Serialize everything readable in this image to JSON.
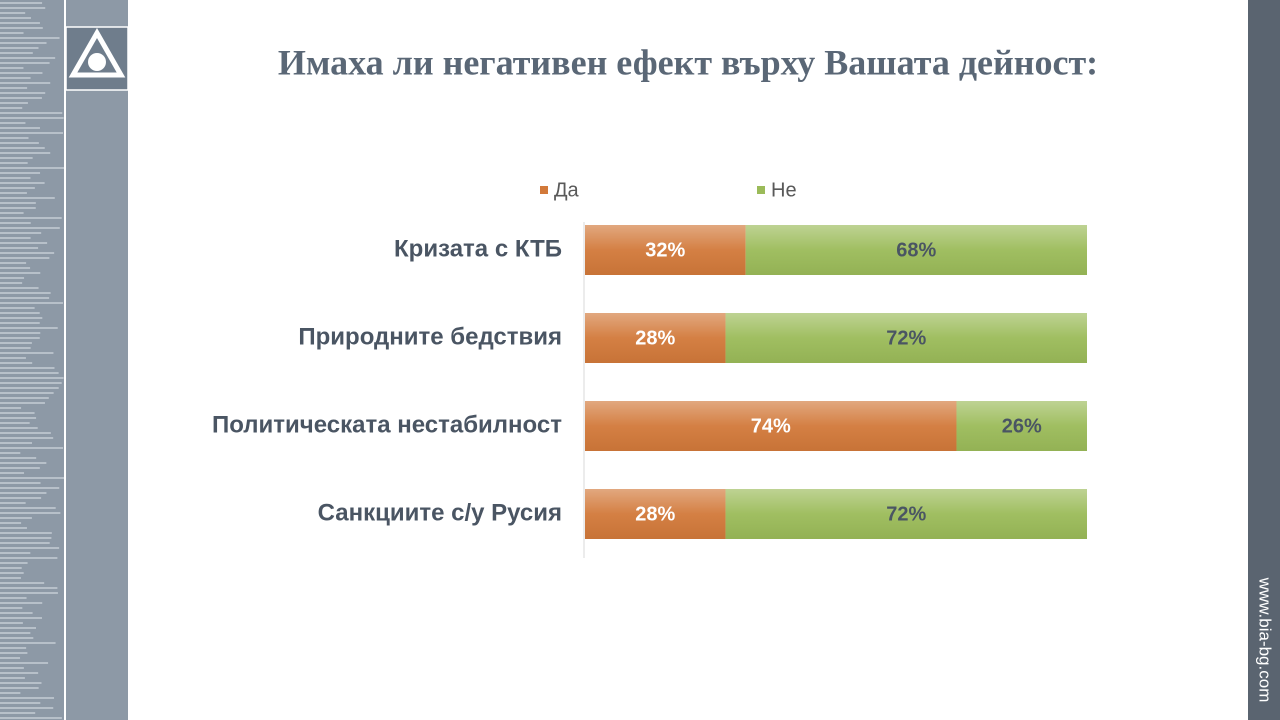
{
  "chart_data": {
    "type": "stacked-bar-horizontal",
    "title": "Имаха ли негативен ефект върху Вашата дейност:",
    "categories": [
      "Кризата с КТБ",
      "Природните бедствия",
      "Политическата нестабилност",
      "Санкциите с/у Русия"
    ],
    "series": [
      {
        "name": "Да",
        "color": "#d2793a",
        "values": [
          32,
          28,
          74,
          28
        ],
        "value_labels": [
          "32%",
          "28%",
          "74%",
          "28%"
        ]
      },
      {
        "name": "Не",
        "color": "#9bbb59",
        "values": [
          68,
          72,
          26,
          72
        ],
        "value_labels": [
          "68%",
          "72%",
          "26%",
          "72%"
        ]
      }
    ],
    "xlim": [
      0,
      100
    ]
  },
  "sidebar_text": "www.bia-bg.com"
}
